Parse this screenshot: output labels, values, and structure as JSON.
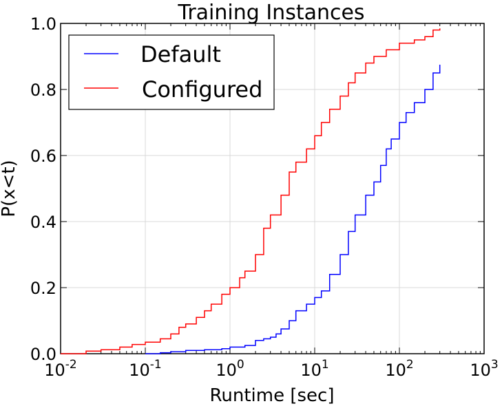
{
  "chart_data": {
    "type": "line",
    "title": "Training Instances",
    "xlabel": "Runtime [sec]",
    "ylabel": "P(x<t)",
    "xscale": "log",
    "xlim": [
      0.01,
      1000
    ],
    "ylim": [
      0.0,
      1.0
    ],
    "grid": true,
    "legend_position": "top-left",
    "x_tick_labels": [
      {
        "base": "10",
        "exp": "-2"
      },
      {
        "base": "10",
        "exp": "-1"
      },
      {
        "base": "10",
        "exp": "0"
      },
      {
        "base": "10",
        "exp": "1"
      },
      {
        "base": "10",
        "exp": "2"
      },
      {
        "base": "10",
        "exp": "3"
      }
    ],
    "y_tick_labels": [
      "0.0",
      "0.2",
      "0.4",
      "0.6",
      "0.8",
      "1.0"
    ],
    "series": [
      {
        "name": "Default",
        "color": "#0000ff",
        "x": [
          0.1,
          0.15,
          0.2,
          0.3,
          0.5,
          0.8,
          1.0,
          1.5,
          2.0,
          2.5,
          3.0,
          3.5,
          4.0,
          5.0,
          6.0,
          8.0,
          10,
          12,
          15,
          20,
          25,
          30,
          40,
          50,
          60,
          70,
          80,
          100,
          120,
          150,
          200,
          250,
          300
        ],
        "y": [
          0.0,
          0.003,
          0.006,
          0.01,
          0.012,
          0.015,
          0.02,
          0.025,
          0.04,
          0.045,
          0.05,
          0.06,
          0.075,
          0.1,
          0.13,
          0.15,
          0.17,
          0.19,
          0.24,
          0.3,
          0.37,
          0.42,
          0.48,
          0.52,
          0.57,
          0.62,
          0.65,
          0.7,
          0.73,
          0.76,
          0.8,
          0.85,
          0.875
        ]
      },
      {
        "name": "Configured",
        "color": "#ff0000",
        "x": [
          0.01,
          0.02,
          0.03,
          0.05,
          0.07,
          0.1,
          0.15,
          0.2,
          0.25,
          0.3,
          0.4,
          0.5,
          0.6,
          0.8,
          1.0,
          1.3,
          1.5,
          2.0,
          2.5,
          3.0,
          4.0,
          5.0,
          6.0,
          8.0,
          10,
          12,
          15,
          20,
          25,
          30,
          40,
          50,
          70,
          100,
          150,
          200,
          250,
          300
        ],
        "y": [
          0.0,
          0.008,
          0.012,
          0.02,
          0.028,
          0.035,
          0.045,
          0.06,
          0.08,
          0.09,
          0.11,
          0.13,
          0.15,
          0.18,
          0.2,
          0.23,
          0.25,
          0.3,
          0.38,
          0.42,
          0.48,
          0.55,
          0.58,
          0.62,
          0.66,
          0.7,
          0.74,
          0.78,
          0.82,
          0.85,
          0.88,
          0.9,
          0.92,
          0.94,
          0.95,
          0.96,
          0.98,
          0.985
        ]
      }
    ]
  }
}
